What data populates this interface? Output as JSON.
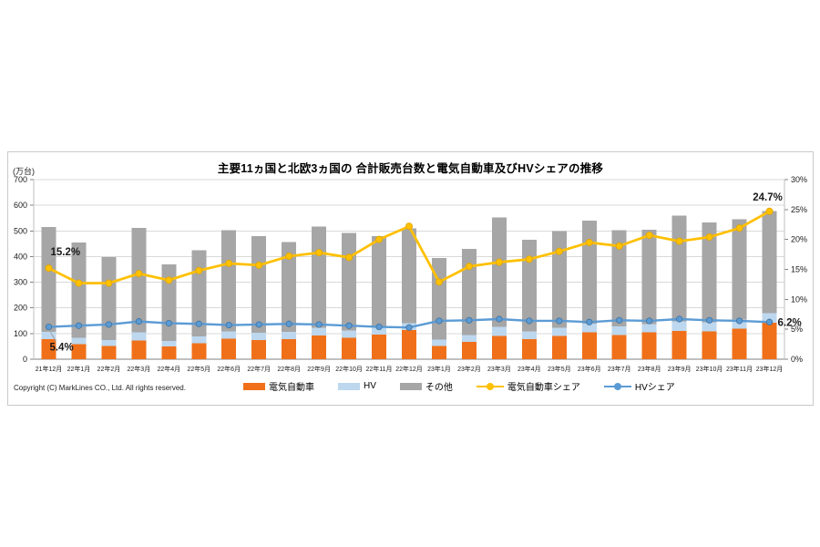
{
  "chart": {
    "title": "主要11ヵ国と北欧3ヵ国の 合計販売台数と電気自動車及びHVシェアの推移",
    "left_axis": {
      "unit_label": "(万台)",
      "ticks": [
        0,
        100,
        200,
        300,
        400,
        500,
        600,
        700
      ],
      "max": 700
    },
    "right_axis": {
      "tick_values": [
        0,
        5,
        10,
        15,
        20,
        25,
        30
      ],
      "suffix": "%",
      "max": 30
    },
    "legend": [
      {
        "label": "電気自動車",
        "type": "bar",
        "color": "#F0701A"
      },
      {
        "label": "HV",
        "type": "bar",
        "color": "#BDD7EE"
      },
      {
        "label": "その他",
        "type": "bar",
        "color": "#A6A6A6"
      },
      {
        "label": "電気自動車シェア",
        "type": "line",
        "color": "#FFC000"
      },
      {
        "label": "HVシェア",
        "type": "line",
        "color": "#5B9BD5"
      }
    ],
    "copyright": "Copyright (C) MarkLines CO., Ltd. All rights reserved.",
    "colors": {
      "grid": "#D9D9D9",
      "axis": "#808080",
      "axis_side": "#BFBFBF",
      "leader": "#A0A0A0",
      "tick_text": "#1a1a1a"
    }
  },
  "chart_data": {
    "type": "bar",
    "subtype": "stacked-bar-with-lines",
    "title": "主要11ヵ国と北欧3ヵ国の 合計販売台数と電気自動車及びHVシェアの推移",
    "xlabel": "",
    "ylabel_left": "(万台)",
    "ylim_left": [
      0,
      700
    ],
    "ylim_right_percent": [
      0,
      30
    ],
    "grid": true,
    "legend_position": "bottom",
    "categories": [
      "21年12月",
      "22年1月",
      "22年2月",
      "22年3月",
      "22年4月",
      "22年5月",
      "22年6月",
      "22年7月",
      "22年8月",
      "22年9月",
      "22年10月",
      "22年11月",
      "22年12月",
      "23年1月",
      "23年2月",
      "23年3月",
      "23年4月",
      "23年5月",
      "23年6月",
      "23年7月",
      "23年8月",
      "23年9月",
      "23年10月",
      "23年11月",
      "23年12月"
    ],
    "series": [
      {
        "name": "電気自動車",
        "type": "bar",
        "axis": "left",
        "color": "#F0701A",
        "values": [
          78,
          58,
          51,
          73,
          49,
          63,
          80,
          75,
          79,
          92,
          84,
          96,
          113,
          51,
          67,
          90,
          78,
          90,
          105,
          95,
          105,
          110,
          109,
          119,
          143
        ]
      },
      {
        "name": "HV",
        "type": "bar",
        "axis": "left",
        "color": "#BDD7EE",
        "values": [
          28,
          25,
          23,
          32,
          22,
          25,
          29,
          28,
          27,
          30,
          28,
          26,
          27,
          25,
          28,
          37,
          30,
          32,
          33,
          33,
          32,
          38,
          35,
          35,
          36
        ]
      },
      {
        "name": "その他",
        "type": "bar",
        "axis": "left",
        "color": "#A6A6A6",
        "values": [
          409,
          372,
          324,
          407,
          299,
          337,
          393,
          377,
          351,
          395,
          380,
          358,
          370,
          319,
          335,
          426,
          357,
          378,
          402,
          374,
          368,
          412,
          389,
          391,
          399
        ]
      },
      {
        "name": "電気自動車シェア",
        "type": "line",
        "axis": "right",
        "color": "#FFC000",
        "marker_stroke": "#E0A400",
        "values": [
          15.2,
          12.7,
          12.7,
          14.3,
          13.2,
          14.8,
          16.0,
          15.7,
          17.2,
          17.8,
          17.0,
          20.0,
          22.2,
          12.9,
          15.5,
          16.2,
          16.7,
          18.0,
          19.5,
          18.9,
          20.7,
          19.7,
          20.4,
          21.9,
          24.7
        ]
      },
      {
        "name": "HVシェア",
        "type": "line",
        "axis": "right",
        "color": "#5B9BD5",
        "marker_stroke": "#41719C",
        "values": [
          5.4,
          5.6,
          5.8,
          6.3,
          6.0,
          5.9,
          5.7,
          5.8,
          5.9,
          5.8,
          5.6,
          5.4,
          5.3,
          6.4,
          6.5,
          6.7,
          6.4,
          6.4,
          6.2,
          6.5,
          6.4,
          6.7,
          6.5,
          6.4,
          6.2
        ]
      }
    ],
    "annotations": [
      {
        "text": "15.2%",
        "series": "電気自動車シェア",
        "index": 0
      },
      {
        "text": "5.4%",
        "series": "HVシェア",
        "index": 0
      },
      {
        "text": "24.7%",
        "series": "電気自動車シェア",
        "index": 24
      },
      {
        "text": "6.2%",
        "series": "HVシェア",
        "index": 24
      }
    ]
  }
}
